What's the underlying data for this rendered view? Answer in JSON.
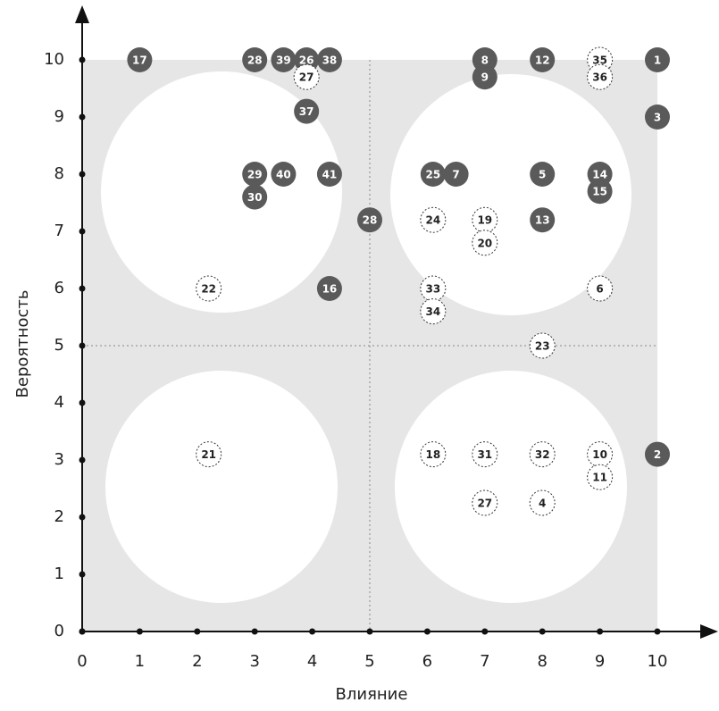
{
  "chart_data": {
    "type": "scatter",
    "xlabel": "Влияние",
    "ylabel": "Вероятность",
    "xlim": [
      0,
      10
    ],
    "ylim": [
      0,
      10
    ],
    "xticks": [
      0,
      1,
      2,
      3,
      4,
      5,
      6,
      7,
      8,
      9,
      10
    ],
    "yticks": [
      0,
      1,
      2,
      3,
      4,
      5,
      6,
      7,
      8,
      9,
      10
    ],
    "xdivider": 5,
    "ydivider": 5,
    "series": [
      {
        "color": "#5a5a5a",
        "marker_style": "filled",
        "labels": [
          "17",
          "28",
          "39",
          "26",
          "38",
          "37",
          "8",
          "9",
          "12",
          "1",
          "3",
          "29",
          "40",
          "41",
          "30",
          "28",
          "16",
          "25",
          "7",
          "5",
          "14",
          "15",
          "13",
          "2"
        ],
        "x": [
          1,
          3,
          3.5,
          3.9,
          4.3,
          3.9,
          7,
          7,
          8,
          10,
          10,
          3,
          3.5,
          4.3,
          3,
          5,
          4.3,
          6.1,
          6.5,
          8,
          9,
          9,
          8,
          10
        ],
        "values": [
          10,
          10,
          10,
          10,
          10,
          9.1,
          10,
          9.7,
          10,
          10,
          9,
          8,
          8,
          8,
          7.6,
          7.2,
          6,
          8,
          8,
          8,
          8,
          7.7,
          7.2,
          3.1
        ]
      },
      {
        "color": "#ffffff",
        "marker_style": "dashed",
        "labels": [
          "27",
          "35",
          "36",
          "24",
          "19",
          "20",
          "22",
          "33",
          "34",
          "6",
          "23",
          "21",
          "18",
          "31",
          "32",
          "10",
          "11",
          "27",
          "4"
        ],
        "x": [
          3.9,
          9,
          9,
          6.1,
          7,
          7,
          2.2,
          6.1,
          6.1,
          9,
          8,
          2.2,
          6.1,
          7,
          8,
          9,
          9,
          7,
          8
        ],
        "values": [
          9.7,
          10,
          9.7,
          7.2,
          7.2,
          6.8,
          6,
          6,
          5.6,
          6,
          5,
          3.1,
          3.1,
          3.1,
          3.1,
          3.1,
          2.7,
          2.25,
          2.25
        ]
      }
    ]
  }
}
